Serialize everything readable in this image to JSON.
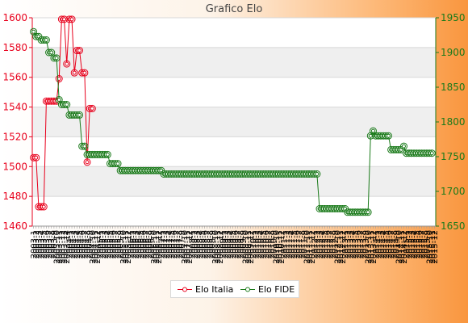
{
  "chart_data": {
    "type": "line",
    "title": "Grafico Elo",
    "colors": {
      "italia": "#e8001c",
      "fide": "#1a7a1a",
      "band": "#efefef",
      "grid": "#d8d8d8"
    },
    "y_left": {
      "min": 1460,
      "max": 1600,
      "ticks": [
        1460,
        1480,
        1500,
        1520,
        1540,
        1560,
        1580,
        1600
      ]
    },
    "y_right": {
      "min": 1650,
      "max": 1950,
      "ticks": [
        1650,
        1700,
        1750,
        1800,
        1850,
        1900,
        1950
      ]
    },
    "x_tick_labels": [
      "2003-1",
      "2003-2",
      "2003-3",
      "2003-4",
      "2003-5",
      "2003-6",
      "2003-7",
      "2003-8",
      "2003-9",
      "2003-10",
      "2003-11",
      "2003-12",
      "2003-13",
      "2003-14",
      "2004-1",
      "2004-2",
      "2004-3",
      "2004-4",
      "2004-5",
      "2004-6",
      "2004-7",
      "2004-8",
      "2004-9",
      "2004-10",
      "2004-11",
      "2004-12",
      "2005-1",
      "2005-2",
      "2005-3",
      "2005-4",
      "2005-5",
      "2005-6",
      "2005-7",
      "2005-8",
      "2005-9",
      "2005-10",
      "2005-11",
      "2005-12",
      "2006-1",
      "2006-2",
      "2006-3",
      "2006-4",
      "2006-5",
      "2006-6",
      "2006-7",
      "2006-8",
      "2006-9",
      "2006-10",
      "2006-11",
      "2006-12",
      "2007-1",
      "2007-2",
      "2007-3",
      "2007-4",
      "2007-5",
      "2007-6",
      "2007-7",
      "2007-8",
      "2007-9",
      "2007-10",
      "2007-11",
      "2007-12",
      "2008-1",
      "2008-2",
      "2008-3",
      "2008-4",
      "2008-5",
      "2008-6",
      "2008-7",
      "2008-8",
      "2008-9",
      "2008-10",
      "2008-11",
      "2008-12",
      "2009-1",
      "2009-2",
      "2009-3",
      "2009-4",
      "2009-5",
      "2009-6",
      "2009-7",
      "2009-8",
      "2009-9",
      "2009-10",
      "2009-11",
      "2009-12",
      "2010-1",
      "2010-2",
      "2010-3",
      "2010-4",
      "2010-5",
      "2010-6",
      "2010-7",
      "2010-8",
      "2010-9",
      "2010-10",
      "2010-11",
      "2010-12",
      "2011-1",
      "2011-2",
      "2011-3",
      "2011-4",
      "2011-5",
      "2011-6",
      "2011-7",
      "2011-8",
      "2011-9",
      "2011-10",
      "2011-11",
      "2011-12",
      "2012-1",
      "2012-2",
      "2012-3",
      "2012-4",
      "2012-5",
      "2012-6",
      "2012-7",
      "2012-8",
      "2012-9",
      "2012-10",
      "2012-11",
      "2012-12",
      "2013-1",
      "2013-2",
      "2013-3",
      "2013-4",
      "2013-5",
      "2013-6",
      "2013-7",
      "2013-8",
      "2013-9",
      "2013-10",
      "2013-11",
      "2013-12",
      "2014-1",
      "2014-2",
      "2014-3",
      "2014-4",
      "2014-5",
      "2014-6",
      "2014-7",
      "2014-8",
      "2014-9",
      "2014-10",
      "2014-11",
      "2014-12",
      "2015-1",
      "2015-2",
      "2015-3",
      "2015-4",
      "2015-5",
      "2015-6",
      "2015-7",
      "2015-8",
      "2015-9",
      "2015-10",
      "2015-11",
      "2015-12"
    ],
    "series": [
      {
        "name": "Elo Italia",
        "axis": "left",
        "values": [
          1506,
          1506,
          1473,
          1473,
          1473,
          1544,
          1544,
          1544,
          1544,
          1544,
          1559,
          1599,
          1599,
          1569,
          1599,
          1599,
          1563,
          1578,
          1578,
          1563,
          1563,
          1503,
          1539,
          1539
        ]
      },
      {
        "name": "Elo FIDE",
        "axis": "right",
        "values": [
          1930,
          1923,
          1923,
          1918,
          1918,
          1918,
          1900,
          1900,
          1892,
          1892,
          1832,
          1825,
          1825,
          1825,
          1810,
          1810,
          1810,
          1810,
          1810,
          1765,
          1765,
          1753,
          1753,
          1753,
          1753,
          1753,
          1753,
          1753,
          1753,
          1753,
          1740,
          1740,
          1740,
          1740,
          1730,
          1730,
          1730,
          1730,
          1730,
          1730,
          1730,
          1730,
          1730,
          1730,
          1730,
          1730,
          1730,
          1730,
          1730,
          1730,
          1730,
          1725,
          1725,
          1725,
          1725,
          1725,
          1725,
          1725,
          1725,
          1725,
          1725,
          1725,
          1725,
          1725,
          1725,
          1725,
          1725,
          1725,
          1725,
          1725,
          1725,
          1725,
          1725,
          1725,
          1725,
          1725,
          1725,
          1725,
          1725,
          1725,
          1725,
          1725,
          1725,
          1725,
          1725,
          1725,
          1725,
          1725,
          1725,
          1725,
          1725,
          1725,
          1725,
          1725,
          1725,
          1725,
          1725,
          1725,
          1725,
          1725,
          1725,
          1725,
          1725,
          1725,
          1725,
          1725,
          1725,
          1725,
          1725,
          1725,
          1725,
          1725,
          1675,
          1675,
          1675,
          1675,
          1675,
          1675,
          1675,
          1675,
          1675,
          1675,
          1675,
          1670,
          1670,
          1670,
          1670,
          1670,
          1670,
          1670,
          1670,
          1670,
          1780,
          1787,
          1780,
          1780,
          1780,
          1780,
          1780,
          1780,
          1760,
          1760,
          1760,
          1760,
          1760,
          1765,
          1755,
          1755,
          1755,
          1755,
          1755,
          1755,
          1755,
          1755,
          1755,
          1755,
          1755
        ]
      }
    ],
    "grid": true,
    "legend": {
      "position": "bottom-center",
      "items": [
        {
          "label": "Elo Italia"
        },
        {
          "label": "Elo FIDE"
        }
      ]
    }
  }
}
